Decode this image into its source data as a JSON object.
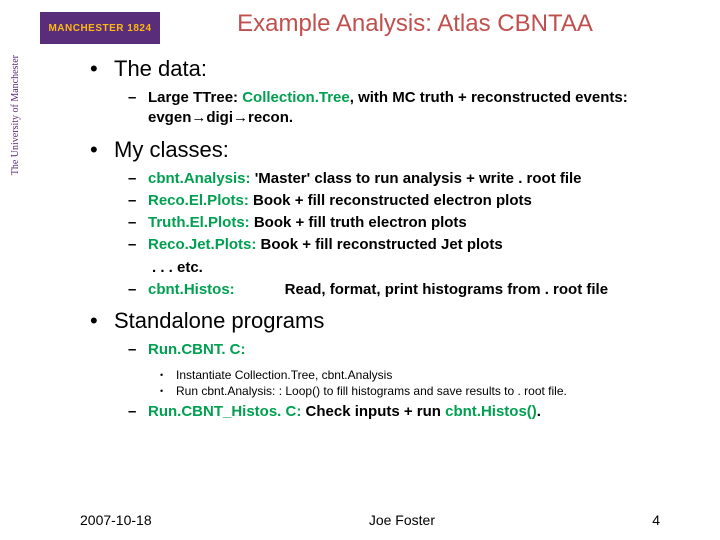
{
  "logo": {
    "main": "MANCHESTER 1824",
    "sub": "The University\nof Manchester"
  },
  "title": "Example Analysis:  Atlas CBNTAA",
  "section1": {
    "heading": "The data:",
    "item1a": "Large TTree:  ",
    "item1b": "Collection.Tree",
    "item1c": ", with MC truth + reconstructed events:  evgen→digi→recon."
  },
  "section2": {
    "heading": "My classes:",
    "i1n": "cbnt.Analysis:",
    "i1d": "  'Master' class to run analysis + write . root file",
    "i2n": "Reco.El.Plots:",
    "i2d": "    Book + fill reconstructed electron plots",
    "i3n": "Truth.El.Plots:",
    "i3d": "  Book + fill truth electron plots",
    "i4n": "Reco.Jet.Plots:",
    "i4d": " Book + fill reconstructed Jet plots",
    "etc": ". . . etc.",
    "i5n": "cbnt.Histos:",
    "i5d": "            Read, format, print histograms from . root file"
  },
  "section3": {
    "heading": "Standalone programs",
    "i1n": "Run.CBNT. C:",
    "s1": "Instantiate Collection.Tree, cbnt.Analysis",
    "s2": "Run cbnt.Analysis: : Loop() to fill histograms and save results to . root file.",
    "i2a": "Run.CBNT_Histos. C:",
    "i2b": "  Check inputs + run ",
    "i2c": "cbnt.Histos()",
    "i2d": "."
  },
  "footer": {
    "date": "2007-10-18",
    "author": "Joe Foster",
    "page": "4"
  },
  "colors": {
    "title": "#c0504d",
    "highlight": "#00a050",
    "logo_bg": "#5a2d7a",
    "logo_fg": "#fdb913"
  }
}
